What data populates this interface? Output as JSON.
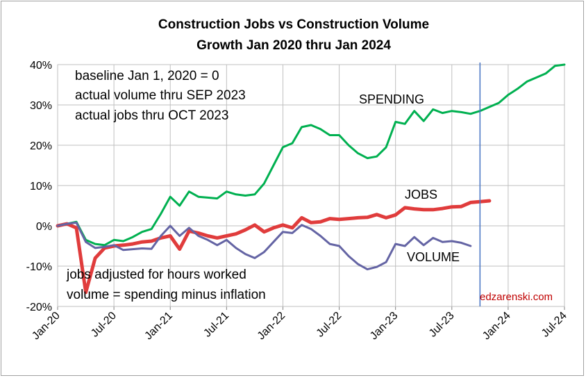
{
  "chart_data": {
    "type": "line",
    "title": "Construction Jobs vs Construction Volume",
    "subtitle": "Growth Jan 2020 thru Jan 2024",
    "x_tick_labels": [
      "Jan-20",
      "Jul-20",
      "Jan-21",
      "Jul-21",
      "Jan-22",
      "Jul-22",
      "Jan-23",
      "Jul-23",
      "Jan-24",
      "Jul-24"
    ],
    "x_range": [
      "2020-01",
      "2024-07"
    ],
    "y_tick_labels": [
      "40%",
      "30%",
      "20%",
      "10%",
      "0%",
      "-10%",
      "-20%"
    ],
    "ylim": [
      -20,
      40
    ],
    "grid": true,
    "annotations": {
      "top_notes": [
        "baseline Jan 1, 2020 = 0",
        "actual volume thru SEP 2023",
        "actual jobs thru OCT 2023"
      ],
      "bottom_notes": [
        "jobs adjusted for hours worked",
        "volume = spending minus inflation"
      ],
      "credit": "edzarenski.com",
      "divider_month": "2023-10"
    },
    "series": [
      {
        "name": "SPENDING",
        "color": "#00b050",
        "x_start": "2020-01",
        "values": [
          0,
          0.5,
          1.0,
          -3.5,
          -4.5,
          -4.8,
          -3.5,
          -3.8,
          -2.8,
          -1.5,
          -0.8,
          3.0,
          7.2,
          5.0,
          8.5,
          7.2,
          7.0,
          6.8,
          8.5,
          7.8,
          7.5,
          7.8,
          10.5,
          15.0,
          19.5,
          20.5,
          24.5,
          25.0,
          24.0,
          22.5,
          22.5,
          20.0,
          18.0,
          16.8,
          17.2,
          19.5,
          25.8,
          25.3,
          28.5,
          26.0,
          28.9,
          28.0,
          28.5,
          28.2,
          27.8,
          28.5,
          29.5,
          30.5,
          32.5,
          34.0,
          35.8,
          36.8,
          37.8,
          39.7,
          40.0
        ]
      },
      {
        "name": "JOBS",
        "color": "#e03c3c",
        "x_start": "2020-01",
        "values": [
          0,
          0.5,
          -0.5,
          -16.5,
          -8.0,
          -5.5,
          -5.0,
          -4.8,
          -4.5,
          -4.0,
          -3.8,
          -3.0,
          -2.5,
          -5.8,
          -1.3,
          -1.8,
          -2.5,
          -3.0,
          -2.5,
          -2.0,
          -1.0,
          0.2,
          -1.5,
          -0.5,
          0.2,
          -0.5,
          2.0,
          0.8,
          1.0,
          1.8,
          1.6,
          1.8,
          2.0,
          2.1,
          2.8,
          2.0,
          2.7,
          4.5,
          4.2,
          4.0,
          4.0,
          4.3,
          4.7,
          4.8,
          5.8,
          6.0,
          6.2
        ]
      },
      {
        "name": "VOLUME",
        "color": "#6464a4",
        "x_start": "2020-01",
        "values": [
          0,
          0.5,
          0.8,
          -4.0,
          -5.5,
          -5.2,
          -4.8,
          -6.0,
          -5.8,
          -5.6,
          -5.7,
          -2.5,
          0.0,
          -2.5,
          -0.5,
          -2.5,
          -3.5,
          -4.8,
          -3.5,
          -5.5,
          -7.0,
          -8.0,
          -6.5,
          -4.0,
          -1.5,
          -1.8,
          0.2,
          -0.8,
          -2.5,
          -4.5,
          -5.0,
          -7.5,
          -9.5,
          -10.8,
          -10.2,
          -9.0,
          -4.5,
          -5.0,
          -2.8,
          -4.8,
          -3.0,
          -4.0,
          -3.8,
          -4.2,
          -5.0
        ]
      }
    ]
  }
}
